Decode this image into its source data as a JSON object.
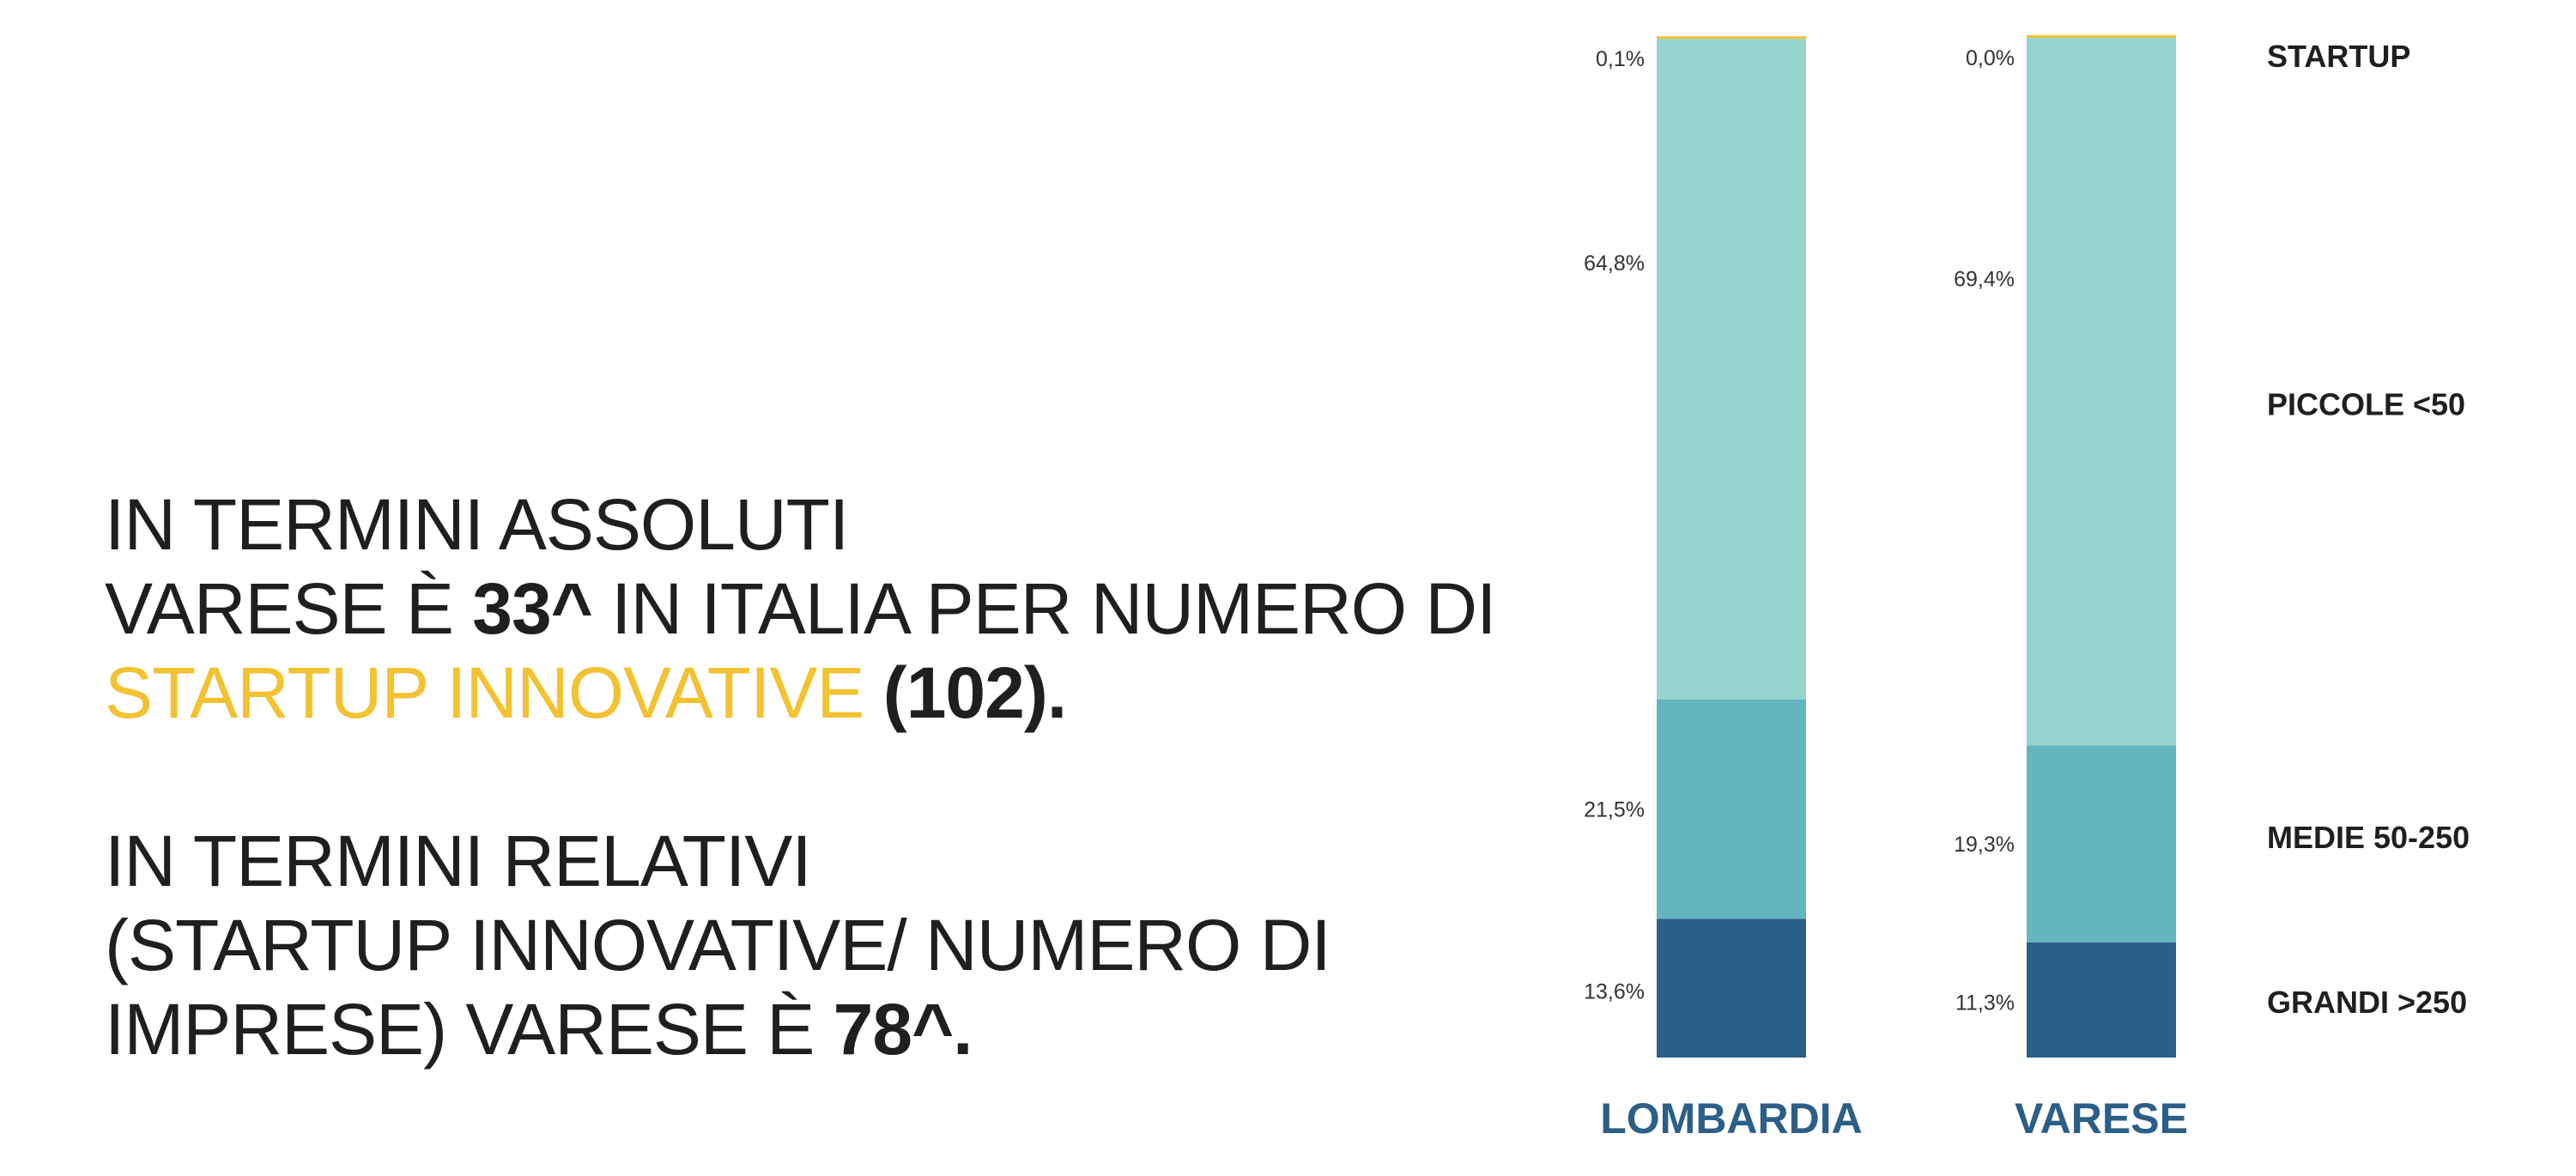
{
  "headline": {
    "line1": "IN TERMINI ASSOLUTI",
    "line2_a": "VARESE È ",
    "line2_b": "33^",
    "line2_c": " IN ITALIA PER NUMERO DI",
    "line3_a": "STARTUP INNOVATIVE",
    "line3_b": " (102).",
    "line4": "IN TERMINI RELATIVI",
    "line5": "(STARTUP INNOVATIVE/ NUMERO DI",
    "line6_a": "IMPRESE) VARESE È ",
    "line6_b": "78^."
  },
  "colors": {
    "accent": "#f3c232",
    "startup": "#f3c232",
    "piccole": "#96d4cd",
    "medie": "#64b5c0",
    "grandi": "#2b5f87",
    "region_label": "#2b5f87"
  },
  "chart_data": {
    "type": "bar",
    "stacked": true,
    "normalized": true,
    "categories": [
      "LOMBARDIA",
      "VARESE"
    ],
    "series": [
      {
        "name": "GRANDI >250",
        "values": [
          13.6,
          11.3
        ],
        "labels": [
          "13,6%",
          "11,3%"
        ]
      },
      {
        "name": "MEDIE 50-250",
        "values": [
          21.5,
          19.3
        ],
        "labels": [
          "21,5%",
          "19,3%"
        ]
      },
      {
        "name": "PICCOLE <50",
        "values": [
          64.8,
          69.4
        ],
        "labels": [
          "64,8%",
          "69,4%"
        ]
      },
      {
        "name": "STARTUP",
        "values": [
          0.1,
          0.0
        ],
        "labels": [
          "0,1%",
          "0,0%"
        ]
      }
    ],
    "legend": [
      "STARTUP",
      "PICCOLE <50",
      "MEDIE 50-250",
      "GRANDI >250"
    ],
    "ylim": [
      0,
      100
    ],
    "grid": false,
    "legend_position": "right"
  }
}
